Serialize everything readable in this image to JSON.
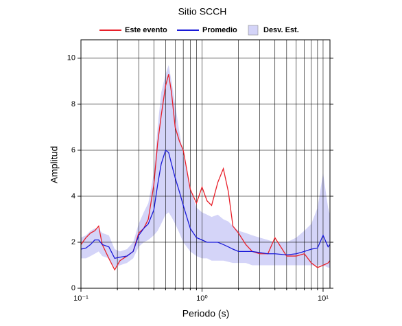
{
  "chart_data": {
    "type": "line",
    "title": "Sitio SCCH",
    "x_label": "Periodo (s)",
    "y_label": "Amplitud",
    "xscale": "log",
    "grid": true,
    "legend": "top",
    "xlim": [
      0.1,
      11.4
    ],
    "ylim": [
      0,
      10.8
    ],
    "xticks": [
      {
        "value": 0.1,
        "label": "10⁻¹"
      },
      {
        "value": 1,
        "label": "10⁰"
      },
      {
        "value": 10,
        "label": "10¹"
      }
    ],
    "xminorticks": [
      0.2,
      0.3,
      0.4,
      0.5,
      0.6,
      0.7,
      0.8,
      0.9,
      2,
      3,
      4,
      5,
      6,
      7,
      8,
      9
    ],
    "yticks": [
      0,
      2,
      4,
      6,
      8,
      10
    ],
    "x": [
      0.1,
      0.11,
      0.12,
      0.13,
      0.14,
      0.15,
      0.17,
      0.19,
      0.21,
      0.24,
      0.27,
      0.3,
      0.33,
      0.36,
      0.4,
      0.43,
      0.46,
      0.5,
      0.53,
      0.56,
      0.6,
      0.65,
      0.7,
      0.8,
      0.9,
      1.0,
      1.1,
      1.2,
      1.35,
      1.5,
      1.65,
      1.8,
      2.0,
      2.3,
      2.6,
      3,
      3.5,
      4,
      5,
      6,
      7,
      8,
      9,
      10,
      11,
      11.4
    ],
    "band": {
      "name": "Desv. Est.",
      "color": "#d4d4f8",
      "upper": [
        2.2,
        2.3,
        2.5,
        2.6,
        2.6,
        2.4,
        2.3,
        1.7,
        1.6,
        1.7,
        2.0,
        2.8,
        3.3,
        3.7,
        5.0,
        7.0,
        8.5,
        9.3,
        9.7,
        9.0,
        8.0,
        6.8,
        5.8,
        4.3,
        3.5,
        3.3,
        3.2,
        3.1,
        3.2,
        3.0,
        2.9,
        2.7,
        2.5,
        2.4,
        2.3,
        2.2,
        2.1,
        2.0,
        2.0,
        2.2,
        2.5,
        2.8,
        3.5,
        5.0,
        3.5,
        3.2
      ],
      "lower": [
        1.3,
        1.3,
        1.4,
        1.5,
        1.6,
        1.4,
        1.3,
        0.9,
        1.0,
        1.1,
        1.3,
        1.8,
        2.0,
        2.1,
        2.3,
        2.5,
        2.8,
        3.2,
        3.3,
        3.1,
        2.8,
        2.4,
        2.0,
        1.6,
        1.4,
        1.3,
        1.3,
        1.2,
        1.2,
        1.2,
        1.15,
        1.1,
        1.1,
        1.1,
        1.0,
        1.0,
        1.0,
        1.0,
        1.0,
        1.0,
        1.0,
        1.0,
        1.0,
        1.0,
        0.9,
        0.9
      ]
    },
    "series": [
      {
        "name": "Este evento",
        "color": "#e8202a",
        "values": [
          1.9,
          2.2,
          2.4,
          2.5,
          2.7,
          1.9,
          1.3,
          0.8,
          1.2,
          1.4,
          1.6,
          2.4,
          2.6,
          3.0,
          4.5,
          6.3,
          7.5,
          8.8,
          9.3,
          8.5,
          7.0,
          6.4,
          6.0,
          4.3,
          3.7,
          4.4,
          3.8,
          3.6,
          4.6,
          5.2,
          4.2,
          2.7,
          2.4,
          1.9,
          1.6,
          1.5,
          1.5,
          2.2,
          1.4,
          1.4,
          1.5,
          1.1,
          0.9,
          1.0,
          1.1,
          1.2
        ]
      },
      {
        "name": "Promedio",
        "color": "#1a1ad8",
        "values": [
          1.7,
          1.75,
          1.9,
          2.1,
          2.1,
          1.9,
          1.8,
          1.3,
          1.35,
          1.4,
          1.6,
          2.3,
          2.6,
          2.8,
          3.4,
          4.5,
          5.4,
          6.0,
          5.9,
          5.4,
          4.8,
          4.2,
          3.6,
          2.6,
          2.2,
          2.1,
          2.0,
          2.0,
          2.0,
          1.9,
          1.8,
          1.7,
          1.6,
          1.6,
          1.6,
          1.55,
          1.5,
          1.5,
          1.45,
          1.5,
          1.6,
          1.7,
          1.75,
          2.3,
          1.8,
          1.9
        ]
      }
    ]
  }
}
